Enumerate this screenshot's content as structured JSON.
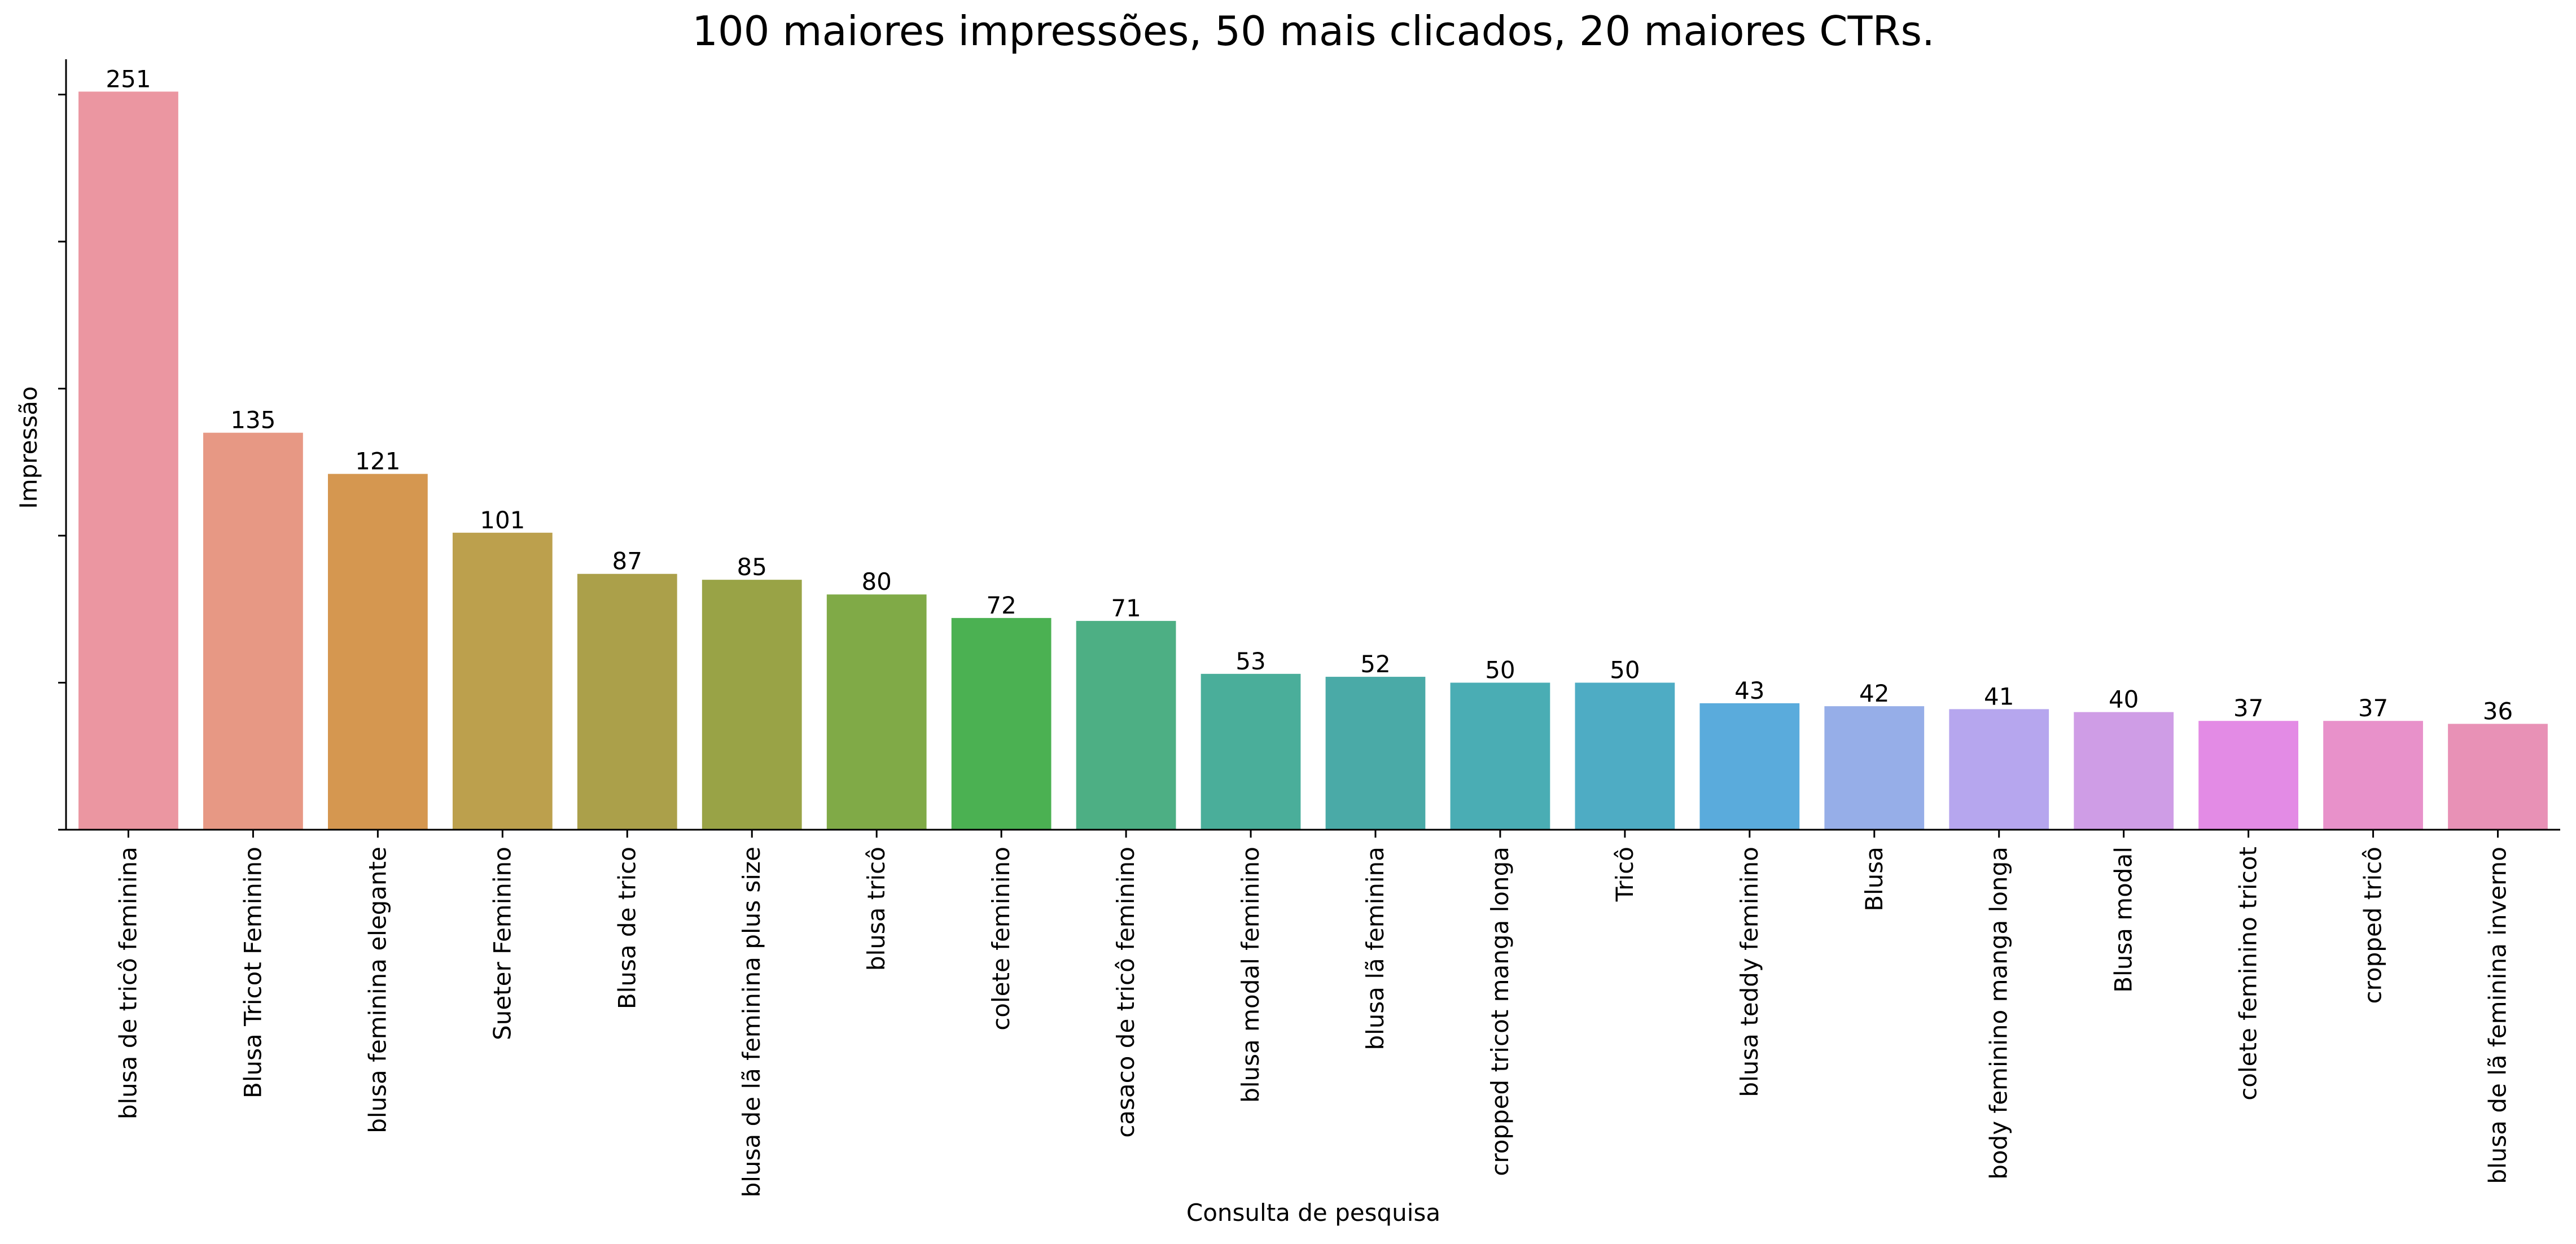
{
  "chart_data": {
    "type": "bar",
    "title": "100 maiores impressões, 50 mais clicados, 20 maiores CTRs.",
    "xlabel": "Consulta de pesquisa",
    "ylabel": "Impressão",
    "ylim": [
      0,
      262
    ],
    "yticks": [
      0,
      50,
      100,
      150,
      200,
      250
    ],
    "ytick_labels_visible": false,
    "grid": false,
    "categories": [
      "blusa de tricô feminina",
      "Blusa Tricot Feminino",
      "blusa feminina elegante",
      "Sueter Feminino",
      "Blusa de trico",
      "blusa de lã feminina plus size",
      "blusa tricô",
      "colete feminino",
      "casaco de tricô feminino",
      "blusa modal feminino",
      "blusa lã feminina",
      "cropped tricot manga longa",
      "Tricô",
      "blusa teddy feminino",
      "Blusa",
      "body feminino manga longa",
      "Blusa modal",
      "colete feminino tricot",
      "cropped tricô",
      "blusa de lã feminina inverno"
    ],
    "values": [
      251,
      135,
      121,
      101,
      87,
      85,
      80,
      72,
      71,
      53,
      52,
      50,
      50,
      43,
      42,
      41,
      40,
      37,
      37,
      36
    ],
    "data_labels": [
      "251",
      "135",
      "121",
      "101",
      "87",
      "85",
      "80",
      "72",
      "71",
      "53",
      "52",
      "50",
      "50",
      "43",
      "42",
      "41",
      "40",
      "37",
      "37",
      "36"
    ],
    "colors": [
      "#eb96a1",
      "#e79884",
      "#d59750",
      "#bca04d",
      "#aba04a",
      "#99a346",
      "#80aa47",
      "#4bb152",
      "#4daf84",
      "#4aae9a",
      "#4aaaa7",
      "#4aadb4",
      "#4eacc4",
      "#5aabdc",
      "#96aee8",
      "#b6a6ee",
      "#cf9de6",
      "#e38be5",
      "#e891ca",
      "#e891b6"
    ]
  }
}
